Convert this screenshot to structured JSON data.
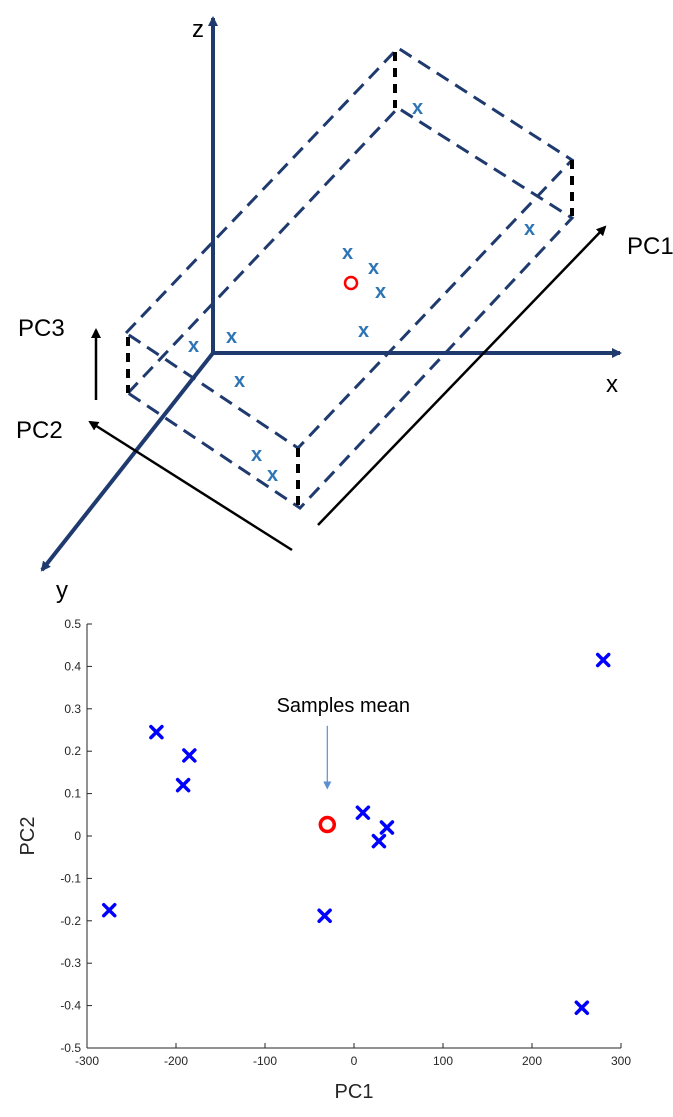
{
  "diagram": {
    "axis_labels": {
      "z": "z",
      "x": "x",
      "y": "y"
    },
    "pc_labels": {
      "pc1": "PC1",
      "pc2": "PC2",
      "pc3": "PC3"
    },
    "sample_mark": "x",
    "colors": {
      "world_axes": "#1f3a6e",
      "box_edges": "#1f3a6e",
      "sample_points": "#2e75b6",
      "mean_marker": "#ff0000",
      "pc_axes": "#000000"
    }
  },
  "chart_data": {
    "type": "scatter",
    "xlabel": "PC1",
    "ylabel": "PC2",
    "xlim": [
      -300,
      300
    ],
    "ylim": [
      -0.5,
      0.5
    ],
    "xticks": [
      -300,
      -200,
      -100,
      0,
      100,
      200,
      300
    ],
    "yticks": [
      -0.5,
      -0.4,
      -0.3,
      -0.2,
      -0.1,
      0,
      0.1,
      0.2,
      0.3,
      0.4,
      0.5
    ],
    "grid": false,
    "series": [
      {
        "marker": "x",
        "color": "#0000ff",
        "points": [
          {
            "x": -275,
            "y": -0.175
          },
          {
            "x": -222,
            "y": 0.245
          },
          {
            "x": -185,
            "y": 0.19
          },
          {
            "x": -192,
            "y": 0.12
          },
          {
            "x": -33,
            "y": -0.188
          },
          {
            "x": 10,
            "y": 0.055
          },
          {
            "x": 37,
            "y": 0.02
          },
          {
            "x": 28,
            "y": -0.012
          },
          {
            "x": 256,
            "y": -0.405
          },
          {
            "x": 280,
            "y": 0.415
          }
        ]
      },
      {
        "marker": "o",
        "color": "#ff0000",
        "points": [
          {
            "x": -30,
            "y": 0.027
          }
        ]
      }
    ],
    "annotations": [
      {
        "text": "Samples mean",
        "x": -30,
        "y": 0.027
      }
    ]
  }
}
